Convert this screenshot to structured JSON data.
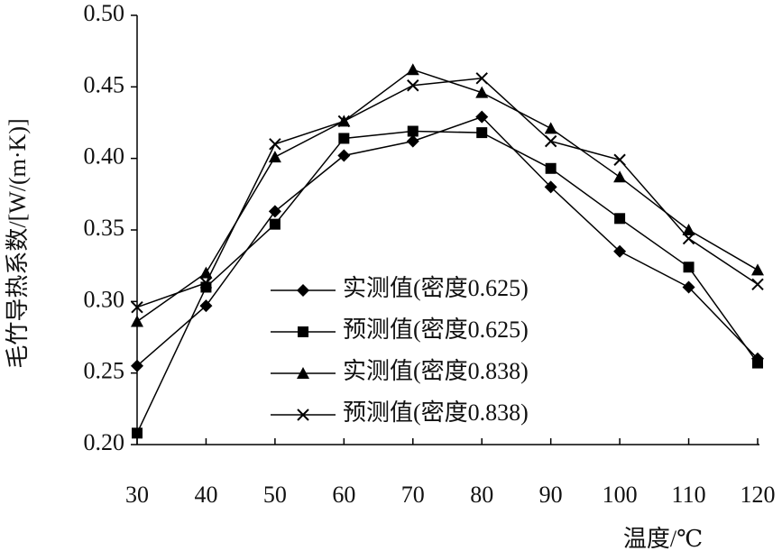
{
  "chart_data": {
    "type": "line",
    "xlabel": "温度/℃",
    "ylabel": "毛竹导热系数/[W/(m·K)]",
    "x": [
      30,
      40,
      50,
      60,
      70,
      80,
      90,
      100,
      110,
      120
    ],
    "series": [
      {
        "name": "实测值(密度0.625)",
        "color": "#000000",
        "marker": "diamond",
        "values": [
          0.255,
          0.297,
          0.363,
          0.402,
          0.412,
          0.429,
          0.38,
          0.335,
          0.31,
          0.26
        ]
      },
      {
        "name": "预测值(密度0.625)",
        "color": "#000000",
        "marker": "square",
        "values": [
          0.208,
          0.31,
          0.354,
          0.414,
          0.419,
          0.418,
          0.393,
          0.358,
          0.324,
          0.257
        ]
      },
      {
        "name": "实测值(密度0.838)",
        "color": "#000000",
        "marker": "triangle",
        "values": [
          0.286,
          0.32,
          0.401,
          0.426,
          0.462,
          0.446,
          0.421,
          0.387,
          0.35,
          0.322
        ]
      },
      {
        "name": "预测值(密度0.838)",
        "color": "#000000",
        "marker": "cross",
        "values": [
          0.296,
          0.313,
          0.41,
          0.426,
          0.451,
          0.456,
          0.412,
          0.399,
          0.344,
          0.312
        ]
      }
    ],
    "xlim": [
      30,
      120
    ],
    "xticks": [
      30,
      40,
      50,
      60,
      70,
      80,
      90,
      100,
      110,
      120
    ],
    "ylim": [
      0.2,
      0.5
    ],
    "yticks": [
      {
        "value": 0.2,
        "label": "0.20"
      },
      0.25,
      {
        "value": 0.3,
        "label": "0.30"
      },
      0.35,
      {
        "value": 0.4,
        "label": "0.40"
      },
      0.45,
      {
        "value": 0.5,
        "label": "0.50"
      }
    ],
    "grid": false
  }
}
